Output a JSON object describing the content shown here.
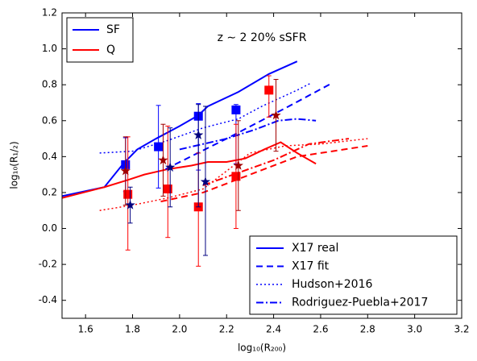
{
  "chart_data": {
    "type": "line",
    "annotation": "z ∼ 2    20% sSFR",
    "xlabel": "log₁₀(R₂₀₀)",
    "ylabel": "log₁₀(R₁/₂)",
    "xlim": [
      1.5,
      3.2
    ],
    "ylim": [
      -0.5,
      1.2
    ],
    "xticks": [
      1.6,
      1.8,
      {
        "value": 2,
        "label": "2.0"
      },
      2.2,
      2.4,
      2.6,
      2.8,
      {
        "value": 3,
        "label": "3.0"
      },
      3.2
    ],
    "yticks": [
      -0.4,
      -0.2,
      {
        "value": 0,
        "label": "0.0"
      },
      0.2,
      0.4,
      0.6,
      0.8,
      {
        "value": 1,
        "label": "1.0"
      },
      1.2
    ],
    "legend_groups": [
      {
        "name": "SF",
        "color": "#0000ff"
      },
      {
        "name": "Q",
        "color": "#ff0000"
      }
    ],
    "legend_styles": [
      {
        "name": "X17 real",
        "dash": "solid"
      },
      {
        "name": "X17 fit",
        "dash": "dashed"
      },
      {
        "name": "Hudson+2016",
        "dash": "dotted"
      },
      {
        "name": "Rodriguez-Puebla+2017",
        "dash": "dashdot"
      }
    ],
    "series": [
      {
        "color": "#0000ff",
        "dash": "solid",
        "x": [
          1.5,
          1.68,
          1.76,
          1.82,
          1.9,
          2.0,
          2.08,
          2.12,
          2.25,
          2.38,
          2.5
        ],
        "values": [
          0.18,
          0.23,
          0.36,
          0.44,
          0.5,
          0.57,
          0.63,
          0.68,
          0.76,
          0.86,
          0.93
        ]
      },
      {
        "color": "#ff0000",
        "dash": "solid",
        "x": [
          1.5,
          1.68,
          1.78,
          1.85,
          1.95,
          2.05,
          2.12,
          2.2,
          2.28,
          2.36,
          2.43,
          2.5,
          2.58
        ],
        "values": [
          0.17,
          0.23,
          0.27,
          0.3,
          0.33,
          0.35,
          0.37,
          0.37,
          0.39,
          0.44,
          0.48,
          0.42,
          0.36
        ]
      },
      {
        "color": "#0000ff",
        "dash": "dashed",
        "x": [
          1.94,
          2.2,
          2.45,
          2.65
        ],
        "values": [
          0.33,
          0.5,
          0.67,
          0.81
        ]
      },
      {
        "color": "#ff0000",
        "dash": "dashed",
        "x": [
          1.92,
          2.1,
          2.3,
          2.5,
          2.8
        ],
        "values": [
          0.15,
          0.2,
          0.3,
          0.4,
          0.46
        ]
      },
      {
        "color": "#0000ff",
        "dash": "dotted",
        "x": [
          1.66,
          1.8,
          1.95,
          2.1,
          2.25,
          2.35,
          2.5,
          2.56
        ],
        "values": [
          0.42,
          0.43,
          0.49,
          0.56,
          0.61,
          0.68,
          0.77,
          0.81
        ]
      },
      {
        "color": "#ff0000",
        "dash": "dotted",
        "x": [
          1.66,
          1.8,
          1.95,
          2.1,
          2.2,
          2.3,
          2.45,
          2.6,
          2.8
        ],
        "values": [
          0.1,
          0.13,
          0.17,
          0.22,
          0.32,
          0.42,
          0.46,
          0.47,
          0.5
        ]
      },
      {
        "color": "#0000ff",
        "dash": "dashdot",
        "x": [
          2.0,
          2.2,
          2.32,
          2.42,
          2.5,
          2.58
        ],
        "values": [
          0.44,
          0.5,
          0.55,
          0.6,
          0.61,
          0.6
        ]
      },
      {
        "color": "#ff0000",
        "dash": "dashdot",
        "x": [
          2.1,
          2.25,
          2.4,
          2.55,
          2.72
        ],
        "values": [
          0.24,
          0.31,
          0.38,
          0.47,
          0.5
        ]
      }
    ],
    "markers": [
      {
        "color": "#0000ff",
        "marker": "square",
        "x": [
          1.77,
          1.91,
          2.08,
          2.24
        ],
        "values": [
          0.355,
          0.455,
          0.625,
          0.66
        ],
        "err_minus": [
          0.15,
          0.23,
          0.3,
          0.3
        ],
        "err_plus": [
          0.15,
          0.23,
          0.07,
          0.03
        ]
      },
      {
        "color": "#ff0000",
        "marker": "square",
        "x": [
          1.78,
          1.95,
          2.08,
          2.24,
          2.38
        ],
        "values": [
          0.19,
          0.22,
          0.12,
          0.29,
          0.77
        ],
        "err_minus": [
          0.31,
          0.27,
          0.33,
          0.29,
          0.15
        ],
        "err_plus": [
          0.32,
          0.35,
          0.3,
          0.29,
          0.08
        ]
      },
      {
        "color": "#000080",
        "marker": "star",
        "x": [
          1.79,
          1.96,
          2.08,
          2.11
        ],
        "values": [
          0.13,
          0.34,
          0.52,
          0.26
        ],
        "err_minus": [
          0.1,
          0.22,
          0.4,
          0.41
        ],
        "err_plus": [
          0.1,
          0.22,
          0.17,
          0.42
        ]
      },
      {
        "color": "#a00000",
        "marker": "star",
        "x": [
          1.77,
          1.93,
          2.25,
          2.41
        ],
        "values": [
          0.32,
          0.38,
          0.35,
          0.63
        ],
        "err_minus": [
          0.19,
          0.2,
          0.25,
          0.2
        ],
        "err_plus": [
          0.19,
          0.2,
          0.25,
          0.2
        ]
      }
    ]
  }
}
